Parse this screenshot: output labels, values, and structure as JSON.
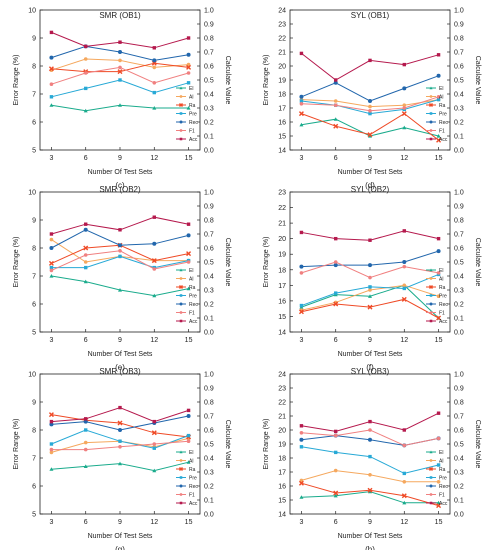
{
  "figure": {
    "legend_labels": [
      "El",
      "Al",
      "Ra",
      "Pre",
      "Rec",
      "F1",
      "Acc"
    ],
    "colors": {
      "El": "#1aab8c",
      "Al": "#f5a85e",
      "Ra": "#ef4a26",
      "Pre": "#27a9d6",
      "Rec": "#2166ac",
      "F1": "#f08080",
      "Acc": "#b5194d"
    }
  },
  "chart_data": [
    {
      "type": "line",
      "panel": "c",
      "title": "SMR (OB1)",
      "letter": "(c)",
      "xlabel": "Number Of Test Sets",
      "ylabel": "Error Range (%)",
      "y2label": "Calculate Value",
      "x": [
        3,
        6,
        9,
        12,
        15
      ],
      "xlim": [
        2,
        16
      ],
      "ylim": [
        5,
        10
      ],
      "yticks": [
        5,
        6,
        7,
        8,
        9,
        10
      ],
      "y2lim": [
        0.0,
        1.0
      ],
      "y2ticks": [
        "0.0",
        "0.1",
        "0.2",
        "0.3",
        "0.4",
        "0.5",
        "0.6",
        "0.7",
        "0.8",
        "0.9",
        "1.0"
      ],
      "series": [
        {
          "name": "El",
          "values": [
            6.6,
            6.4,
            6.6,
            6.5,
            6.5
          ]
        },
        {
          "name": "Al",
          "values": [
            7.85,
            8.25,
            8.2,
            7.95,
            8.05
          ]
        },
        {
          "name": "Ra",
          "values": [
            7.9,
            7.8,
            7.8,
            8.1,
            7.95
          ]
        },
        {
          "name": "Pre",
          "values": [
            6.9,
            7.2,
            7.5,
            7.05,
            7.4
          ]
        },
        {
          "name": "Rec",
          "values": [
            8.3,
            8.7,
            8.5,
            8.2,
            8.4
          ]
        },
        {
          "name": "F1",
          "values": [
            7.35,
            7.75,
            7.95,
            7.4,
            7.75
          ]
        },
        {
          "name": "Acc",
          "values": [
            9.2,
            8.7,
            8.85,
            8.65,
            9.0
          ]
        }
      ]
    },
    {
      "type": "line",
      "panel": "d",
      "title": "SYL (OB1)",
      "letter": "(d)",
      "xlabel": "Number Of Test Sets",
      "ylabel": "Error Range (%)",
      "y2label": "Calculate Value",
      "x": [
        3,
        6,
        9,
        12,
        15
      ],
      "xlim": [
        2,
        16
      ],
      "ylim": [
        14,
        24
      ],
      "yticks": [
        14,
        15,
        16,
        17,
        18,
        19,
        20,
        21,
        22,
        23,
        24
      ],
      "y2lim": [
        0.0,
        1.0
      ],
      "y2ticks": [
        "0.0",
        "0.1",
        "0.2",
        "0.3",
        "0.4",
        "0.5",
        "0.6",
        "0.7",
        "0.8",
        "0.9",
        "1.0"
      ],
      "series": [
        {
          "name": "El",
          "values": [
            15.8,
            16.2,
            15.0,
            15.6,
            15.0
          ]
        },
        {
          "name": "Al",
          "values": [
            17.6,
            17.5,
            17.1,
            17.2,
            17.6
          ]
        },
        {
          "name": "Ra",
          "values": [
            16.6,
            15.7,
            15.1,
            16.6,
            14.7
          ]
        },
        {
          "name": "Pre",
          "values": [
            17.5,
            17.2,
            16.6,
            16.9,
            17.6
          ]
        },
        {
          "name": "Rec",
          "values": [
            17.8,
            18.8,
            17.5,
            18.4,
            19.3
          ]
        },
        {
          "name": "F1",
          "values": [
            17.3,
            17.2,
            16.8,
            17.0,
            17.8
          ]
        },
        {
          "name": "Acc",
          "values": [
            20.9,
            19.0,
            20.4,
            20.1,
            20.8
          ]
        }
      ]
    },
    {
      "type": "line",
      "panel": "e",
      "title": "SMR (OB2)",
      "letter": "(e)",
      "xlabel": "Number Of Test Sets",
      "ylabel": "Error Range (%)",
      "y2label": "Calculate Value",
      "x": [
        3,
        6,
        9,
        12,
        15
      ],
      "xlim": [
        2,
        16
      ],
      "ylim": [
        5,
        10
      ],
      "yticks": [
        5,
        6,
        7,
        8,
        9,
        10
      ],
      "y2lim": [
        0.0,
        1.0
      ],
      "y2ticks": [
        "0.0",
        "0.1",
        "0.2",
        "0.3",
        "0.4",
        "0.5",
        "0.6",
        "0.7",
        "0.8",
        "0.9",
        "1.0"
      ],
      "series": [
        {
          "name": "El",
          "values": [
            7.0,
            6.8,
            6.5,
            6.3,
            6.55
          ]
        },
        {
          "name": "Al",
          "values": [
            8.3,
            7.5,
            7.7,
            7.55,
            7.55
          ]
        },
        {
          "name": "Ra",
          "values": [
            7.45,
            8.0,
            8.1,
            7.55,
            7.8
          ]
        },
        {
          "name": "Pre",
          "values": [
            7.3,
            7.3,
            7.7,
            7.3,
            7.55
          ]
        },
        {
          "name": "Rec",
          "values": [
            8.0,
            8.65,
            8.1,
            8.15,
            8.45
          ]
        },
        {
          "name": "F1",
          "values": [
            7.2,
            7.75,
            7.9,
            7.25,
            7.5
          ]
        },
        {
          "name": "Acc",
          "values": [
            8.5,
            8.85,
            8.65,
            9.1,
            8.85
          ]
        }
      ]
    },
    {
      "type": "line",
      "panel": "f",
      "title": "SYL (OB2)",
      "letter": "(f)",
      "xlabel": "Number Of Test Sets",
      "ylabel": "Error Range (%)",
      "y2label": "Calculate Value",
      "x": [
        3,
        6,
        9,
        12,
        15
      ],
      "xlim": [
        2,
        16
      ],
      "ylim": [
        14,
        23
      ],
      "yticks": [
        14,
        15,
        16,
        17,
        18,
        19,
        20,
        21,
        22,
        23
      ],
      "y2lim": [
        0.0,
        1.0
      ],
      "y2ticks": [
        "0.0",
        "0.1",
        "0.2",
        "0.3",
        "0.4",
        "0.5",
        "0.6",
        "0.7",
        "0.8",
        "0.9",
        "1.0"
      ],
      "series": [
        {
          "name": "El",
          "values": [
            15.6,
            16.4,
            16.3,
            17.0,
            14.9
          ]
        },
        {
          "name": "Al",
          "values": [
            15.4,
            15.9,
            16.7,
            17.0,
            16.3
          ]
        },
        {
          "name": "Ra",
          "values": [
            15.3,
            15.8,
            15.6,
            16.1,
            14.9
          ]
        },
        {
          "name": "Pre",
          "values": [
            15.7,
            16.5,
            16.9,
            16.8,
            17.7
          ]
        },
        {
          "name": "Rec",
          "values": [
            18.2,
            18.3,
            18.3,
            18.5,
            19.2
          ]
        },
        {
          "name": "F1",
          "values": [
            17.8,
            18.5,
            17.5,
            18.2,
            17.8
          ]
        },
        {
          "name": "Acc",
          "values": [
            20.4,
            20.0,
            19.9,
            20.5,
            20.0
          ]
        }
      ]
    },
    {
      "type": "line",
      "panel": "g",
      "title": "SMR (OB3)",
      "letter": "(g)",
      "xlabel": "Number Of Test Sets",
      "ylabel": "Error Range (%)",
      "y2label": "Calculate Value",
      "x": [
        3,
        6,
        9,
        12,
        15
      ],
      "xlim": [
        2,
        16
      ],
      "ylim": [
        5,
        10
      ],
      "yticks": [
        5,
        6,
        7,
        8,
        9,
        10
      ],
      "y2lim": [
        0.0,
        1.0
      ],
      "y2ticks": [
        "0.0",
        "0.1",
        "0.2",
        "0.3",
        "0.4",
        "0.5",
        "0.6",
        "0.7",
        "0.8",
        "0.9",
        "1.0"
      ],
      "series": [
        {
          "name": "El",
          "values": [
            6.6,
            6.7,
            6.8,
            6.55,
            6.85
          ]
        },
        {
          "name": "Al",
          "values": [
            7.2,
            7.55,
            7.6,
            7.4,
            7.7
          ]
        },
        {
          "name": "Ra",
          "values": [
            8.55,
            8.35,
            8.25,
            7.9,
            7.75
          ]
        },
        {
          "name": "Pre",
          "values": [
            7.5,
            8.0,
            7.6,
            7.35,
            7.8
          ]
        },
        {
          "name": "Rec",
          "values": [
            8.2,
            8.3,
            8.0,
            8.25,
            8.5
          ]
        },
        {
          "name": "F1",
          "values": [
            7.3,
            7.3,
            7.4,
            7.5,
            7.6
          ]
        },
        {
          "name": "Acc",
          "values": [
            8.3,
            8.4,
            8.8,
            8.3,
            8.7
          ]
        }
      ]
    },
    {
      "type": "line",
      "panel": "h",
      "title": "SYL (OB3)",
      "letter": "(h)",
      "xlabel": "Number Of Test Sets",
      "ylabel": "Error Range (%)",
      "y2label": "Calculate Value",
      "x": [
        3,
        6,
        9,
        12,
        15
      ],
      "xlim": [
        2,
        16
      ],
      "ylim": [
        14,
        24
      ],
      "yticks": [
        14,
        15,
        16,
        17,
        18,
        19,
        20,
        21,
        22,
        23,
        24
      ],
      "y2lim": [
        0.0,
        1.0
      ],
      "y2ticks": [
        "0.0",
        "0.1",
        "0.2",
        "0.3",
        "0.4",
        "0.5",
        "0.6",
        "0.7",
        "0.8",
        "0.9",
        "1.0"
      ],
      "series": [
        {
          "name": "El",
          "values": [
            15.2,
            15.3,
            15.6,
            14.8,
            14.8
          ]
        },
        {
          "name": "Al",
          "values": [
            16.4,
            17.1,
            16.8,
            16.3,
            16.3
          ]
        },
        {
          "name": "Ra",
          "values": [
            16.2,
            15.5,
            15.7,
            15.3,
            14.6
          ]
        },
        {
          "name": "Pre",
          "values": [
            18.8,
            18.4,
            18.1,
            16.9,
            17.5
          ]
        },
        {
          "name": "Rec",
          "values": [
            19.3,
            19.6,
            19.3,
            18.9,
            19.4
          ]
        },
        {
          "name": "F1",
          "values": [
            19.8,
            19.6,
            20.0,
            18.9,
            19.4
          ]
        },
        {
          "name": "Acc",
          "values": [
            20.3,
            19.9,
            20.6,
            20.0,
            21.2
          ]
        }
      ]
    }
  ]
}
